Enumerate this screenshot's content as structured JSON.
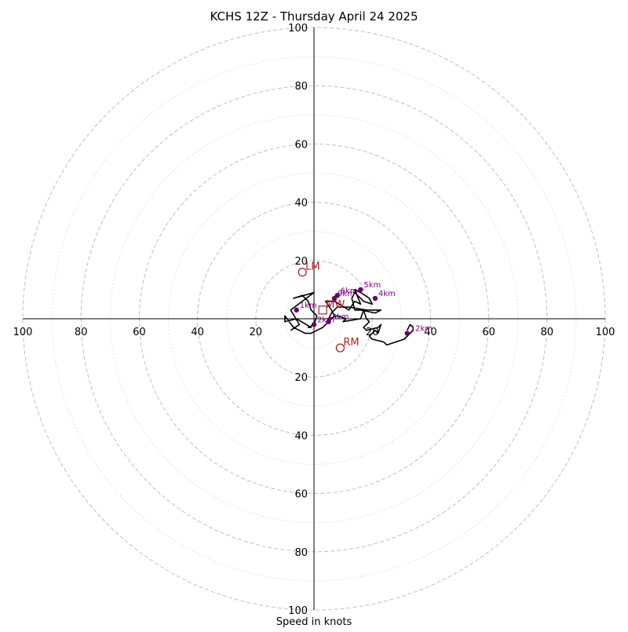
{
  "chart_data": {
    "type": "hodograph",
    "title": "KCHS 12Z - Thursday April 24 2025",
    "xlabel": "Speed in knots",
    "range": [
      -100,
      100
    ],
    "tick_labels": {
      "x_neg": [
        "100",
        "80",
        "60",
        "40",
        "20"
      ],
      "x_pos": [
        "20",
        "40",
        "60",
        "80",
        "100"
      ],
      "y_pos": [
        "20",
        "40",
        "60",
        "80",
        "100"
      ],
      "y_neg": [
        "20",
        "40",
        "60",
        "80",
        "100"
      ]
    },
    "ring_values": [
      20,
      40,
      60,
      80,
      100
    ],
    "minor_ring_values": [
      10,
      30,
      50,
      70,
      90
    ],
    "colors": {
      "trace": "#000000",
      "height_marker": "#6a006a",
      "height_label": "#800080",
      "storm_motion": "#b22222",
      "ring_major": "#bfbfbf",
      "ring_minor": "#d9d9d9"
    },
    "trace": [
      [
        -8,
        -4
      ],
      [
        -5,
        -2
      ],
      [
        -8,
        3
      ],
      [
        0,
        9
      ],
      [
        -7,
        7
      ],
      [
        -4,
        8
      ],
      [
        -2,
        6
      ],
      [
        -1,
        3
      ],
      [
        1,
        1
      ],
      [
        0,
        -2
      ],
      [
        -2,
        -3
      ],
      [
        -1,
        -3
      ],
      [
        -6,
        0
      ],
      [
        -10,
        -1
      ],
      [
        -10,
        1
      ],
      [
        -7,
        -3
      ],
      [
        -3,
        -5
      ],
      [
        -1,
        -5
      ],
      [
        1,
        -4
      ],
      [
        3,
        -3
      ],
      [
        5,
        -1
      ],
      [
        7,
        1
      ],
      [
        6,
        3
      ],
      [
        4,
        6
      ],
      [
        7,
        6
      ],
      [
        12,
        3
      ],
      [
        14,
        6
      ],
      [
        16,
        5
      ],
      [
        14,
        10
      ],
      [
        16,
        9
      ],
      [
        19,
        7
      ],
      [
        20,
        5
      ],
      [
        17,
        6
      ],
      [
        14,
        9
      ],
      [
        13,
        7
      ],
      [
        14,
        3
      ],
      [
        16,
        3
      ],
      [
        21,
        2
      ],
      [
        23,
        3
      ],
      [
        18,
        3
      ],
      [
        12,
        4
      ],
      [
        8,
        4
      ],
      [
        6,
        2
      ],
      [
        5,
        0
      ],
      [
        8,
        1
      ],
      [
        11,
        0
      ],
      [
        10,
        -1
      ],
      [
        16,
        0
      ],
      [
        17,
        3
      ],
      [
        18,
        0
      ],
      [
        19,
        -1
      ],
      [
        17,
        -3
      ],
      [
        18,
        -4
      ],
      [
        22,
        -3
      ],
      [
        23,
        -2
      ],
      [
        22,
        -5
      ],
      [
        21,
        -4
      ],
      [
        19,
        -6
      ],
      [
        20,
        -7
      ],
      [
        24,
        -8
      ],
      [
        25,
        -9
      ],
      [
        31,
        -7
      ],
      [
        34,
        -4
      ],
      [
        34,
        -3
      ],
      [
        33,
        -2
      ],
      [
        32,
        -4
      ]
    ],
    "height_points": [
      {
        "label": "1km",
        "u": -6,
        "v": 3
      },
      {
        "label": "2km",
        "u": 0,
        "v": -2
      },
      {
        "label": "3km",
        "u": 5,
        "v": -1
      },
      {
        "label": "6km",
        "u": 8,
        "v": 8
      },
      {
        "label": "9km",
        "u": 7,
        "v": 7
      },
      {
        "label": "5km",
        "u": 16,
        "v": 10
      },
      {
        "label": "4km",
        "u": 21,
        "v": 7
      },
      {
        "label": "12km",
        "u": 32,
        "v": -5
      }
    ],
    "storm_motions": [
      {
        "label": "LM",
        "u": -4,
        "v": 16
      },
      {
        "label": "MW",
        "u": 3,
        "v": 3
      },
      {
        "label": "RM",
        "u": 9,
        "v": -10
      }
    ]
  }
}
